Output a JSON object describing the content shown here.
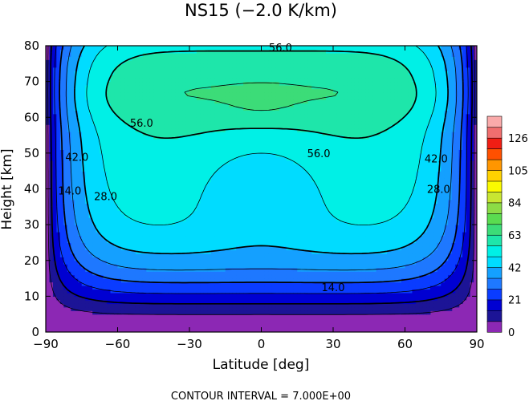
{
  "chart_data": {
    "type": "contour",
    "title": "NS15 (−2.0 K/km)",
    "xlabel": "Latitude [deg]",
    "ylabel": "Height [km]",
    "xlim": [
      -90,
      90
    ],
    "ylim": [
      0,
      80
    ],
    "x_ticks": [
      "−90",
      "−60",
      "−30",
      "0",
      "30",
      "60",
      "90"
    ],
    "x_tick_values": [
      -90,
      -60,
      -30,
      0,
      30,
      60,
      90
    ],
    "y_ticks": [
      "0",
      "10",
      "20",
      "30",
      "40",
      "50",
      "60",
      "70",
      "80"
    ],
    "y_tick_values": [
      0,
      10,
      20,
      30,
      40,
      50,
      60,
      70,
      80
    ],
    "contour_interval": 7.0,
    "footer": "CONTOUR INTERVAL = 7.000E+00",
    "colorbar": {
      "tick_labels": [
        "0",
        "21",
        "42",
        "63",
        "84",
        "105",
        "126"
      ],
      "tick_values": [
        0,
        21,
        42,
        63,
        84,
        105,
        126
      ],
      "levels": [
        0,
        7,
        14,
        21,
        28,
        35,
        42,
        49,
        56,
        63,
        70,
        77,
        84,
        91,
        98,
        105,
        112,
        119,
        126,
        133
      ],
      "colors": [
        "#8c28b4",
        "#1c1496",
        "#0000d2",
        "#0a3cff",
        "#1e78ff",
        "#14a0ff",
        "#00dcff",
        "#00f0e6",
        "#1ee6aa",
        "#3cdc78",
        "#5adc50",
        "#8cdc46",
        "#c8e632",
        "#fafa00",
        "#ffd200",
        "#ff9600",
        "#ff5000",
        "#f01e14",
        "#f06e6e",
        "#faaaaa"
      ]
    },
    "contour_labels": [
      {
        "text": "56.0",
        "lat": 8,
        "z": 79.5
      },
      {
        "text": "56.0",
        "lat": -50,
        "z": 58.5
      },
      {
        "text": "56.0",
        "lat": 24,
        "z": 50
      },
      {
        "text": "42.0",
        "lat": -77,
        "z": 49
      },
      {
        "text": "42.0",
        "lat": 73,
        "z": 48.5
      },
      {
        "text": "28.0",
        "lat": -65,
        "z": 38
      },
      {
        "text": "28.0",
        "lat": 74,
        "z": 40
      },
      {
        "text": "14.0",
        "lat": -80,
        "z": 39.5
      },
      {
        "text": "14.0",
        "lat": 30,
        "z": 12.5
      }
    ]
  }
}
